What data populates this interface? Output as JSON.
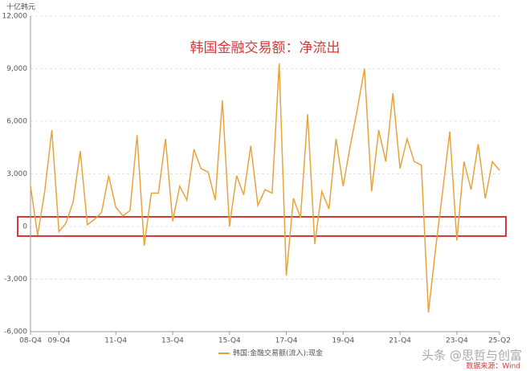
{
  "chart_data": {
    "type": "line",
    "title": "韩国金融交易额：净流出",
    "y_axis_label": "十亿韩元",
    "source": "数据来源：Wind",
    "watermark": "头条 @思哲与创富",
    "categories": [
      "08-Q4",
      null,
      null,
      null,
      "09-Q4",
      null,
      null,
      null,
      null,
      null,
      null,
      null,
      "11-Q4",
      null,
      null,
      null,
      null,
      null,
      null,
      null,
      "13-Q4",
      null,
      null,
      null,
      null,
      null,
      null,
      null,
      "15-Q4",
      null,
      null,
      null,
      null,
      null,
      null,
      null,
      "17-Q4",
      null,
      null,
      null,
      null,
      null,
      null,
      null,
      "19-Q4",
      null,
      null,
      null,
      null,
      null,
      null,
      null,
      "21-Q4",
      null,
      null,
      null,
      null,
      null,
      null,
      null,
      "23-Q4",
      null,
      null,
      null,
      null,
      null,
      "25-Q2"
    ],
    "series": [
      {
        "name": "韩国:金融交易额(流入):现金",
        "color": "#e8a33d",
        "values": [
          2300,
          -500,
          2000,
          5500,
          -300,
          200,
          1400,
          4300,
          100,
          400,
          800,
          2900,
          1100,
          600,
          900,
          5200,
          -1100,
          1900,
          1900,
          5000,
          300,
          2300,
          1500,
          4400,
          3300,
          3100,
          1500,
          7200,
          0,
          2900,
          1800,
          4600,
          1200,
          2100,
          1900,
          9300,
          -2800,
          1600,
          500,
          6400,
          -1000,
          2000,
          1000,
          5000,
          2300,
          4600,
          6700,
          9000,
          2000,
          5500,
          3700,
          7600,
          3300,
          5000,
          3700,
          3500,
          -4900,
          -1300,
          2000,
          5400,
          -800,
          3700,
          2100,
          4700,
          1600,
          3700,
          3200
        ]
      }
    ],
    "ylim": [
      -6000,
      12000
    ],
    "yticks": [
      {
        "value": -6000,
        "label": "-6,000"
      },
      {
        "value": -3000,
        "label": "-3,000"
      },
      0,
      {
        "value": 3000,
        "label": "3,000"
      },
      {
        "value": 6000,
        "label": "6,000"
      },
      {
        "value": 9000,
        "label": "9,000"
      },
      {
        "value": 12000,
        "label": "12,000"
      }
    ],
    "grid": true
  }
}
